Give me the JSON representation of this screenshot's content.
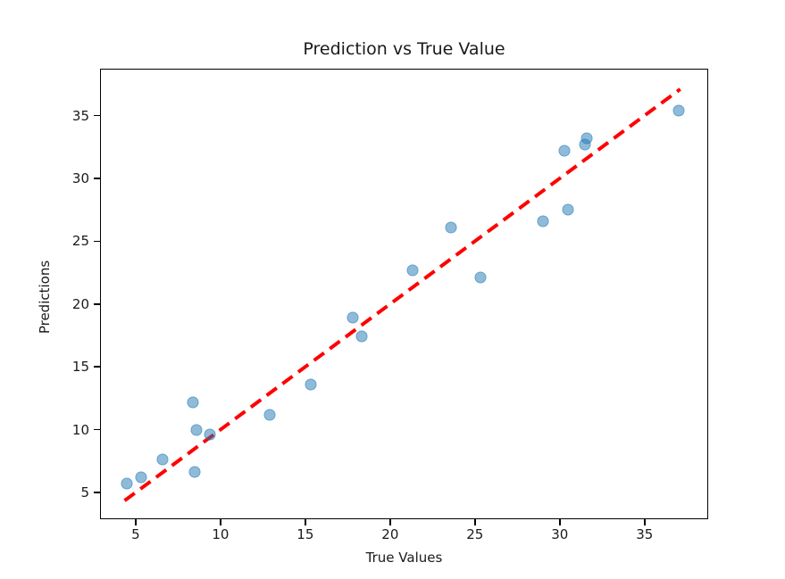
{
  "figure": {
    "title": "Prediction vs True Value",
    "xlabel": "True Values",
    "ylabel": "Predictions"
  },
  "chart_data": {
    "type": "scatter",
    "title": "Prediction vs True Value",
    "xlabel": "True Values",
    "ylabel": "Predictions",
    "xlim": [
      2.9,
      38.75
    ],
    "ylim": [
      2.87,
      38.73
    ],
    "x_ticks": [
      5,
      10,
      15,
      20,
      25,
      30,
      35
    ],
    "y_ticks": [
      5,
      10,
      15,
      20,
      25,
      30,
      35
    ],
    "grid": false,
    "legend": null,
    "series": [
      {
        "name": "predictions-vs-true-scatter",
        "type": "scatter",
        "marker": "circle",
        "color": "#1f77b4",
        "alpha": 0.5,
        "points": [
          [
            4.5,
            5.7
          ],
          [
            5.3,
            6.2
          ],
          [
            6.6,
            7.6
          ],
          [
            8.4,
            12.2
          ],
          [
            8.5,
            6.6
          ],
          [
            8.6,
            10.0
          ],
          [
            9.4,
            9.6
          ],
          [
            12.9,
            11.2
          ],
          [
            15.3,
            13.6
          ],
          [
            17.8,
            18.9
          ],
          [
            18.3,
            17.4
          ],
          [
            21.3,
            22.7
          ],
          [
            23.6,
            26.1
          ],
          [
            25.3,
            22.1
          ],
          [
            29.0,
            26.6
          ],
          [
            30.3,
            32.2
          ],
          [
            30.5,
            27.5
          ],
          [
            31.5,
            32.7
          ],
          [
            31.6,
            33.2
          ],
          [
            37.0,
            35.4
          ]
        ]
      },
      {
        "name": "identity-reference-line",
        "type": "line",
        "style": "dashed",
        "color": "#ff0000",
        "linewidth": 4,
        "points": [
          [
            4.35,
            4.35
          ],
          [
            37.1,
            37.1
          ]
        ]
      }
    ]
  },
  "colors": {
    "marker_fill": "rgba(31,119,180,0.5)",
    "marker_edge": "rgba(31,119,180,0.4)",
    "dashed_line": "#ff0000",
    "axes": "#000000",
    "text": "#1a1a1a",
    "background": "#ffffff"
  }
}
